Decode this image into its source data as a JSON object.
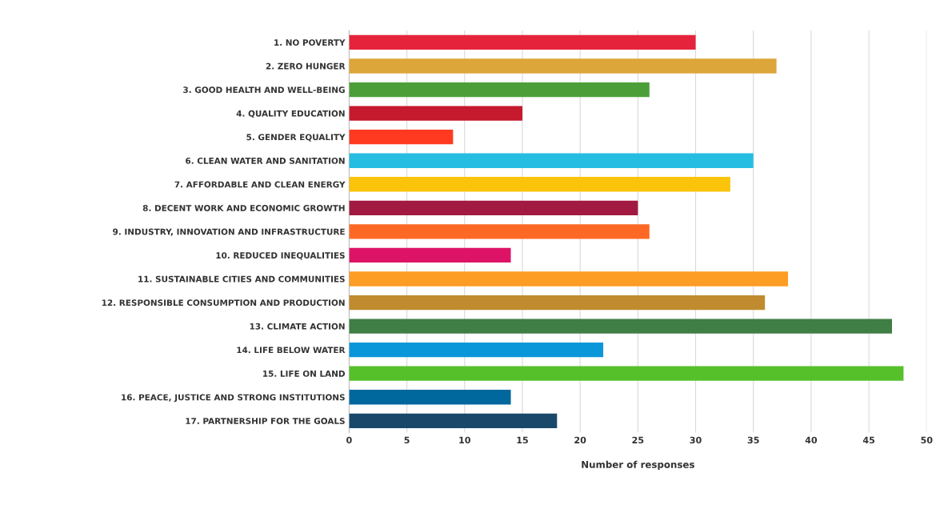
{
  "chart_data": {
    "type": "bar",
    "orientation": "horizontal",
    "xlabel": "Number of responses",
    "categories": [
      "1. NO POVERTY",
      "2. ZERO HUNGER",
      "3. GOOD HEALTH AND WELL-BEING",
      "4. QUALITY EDUCATION",
      "5. GENDER EQUALITY",
      "6. CLEAN WATER AND SANITATION",
      "7. AFFORDABLE AND CLEAN ENERGY",
      "8. DECENT WORK AND ECONOMIC GROWTH",
      "9. INDUSTRY, INNOVATION AND INFRASTRUCTURE",
      "10. REDUCED INEQUALITIES",
      "11. SUSTAINABLE CITIES AND COMMUNITIES",
      "12. RESPONSIBLE CONSUMPTION AND PRODUCTION",
      "13. CLIMATE ACTION",
      "14. LIFE BELOW WATER",
      "15. LIFE ON LAND",
      "16. PEACE, JUSTICE AND STRONG INSTITUTIONS",
      "17. PARTNERSHIP FOR THE GOALS"
    ],
    "values": [
      30,
      37,
      26,
      15,
      9,
      35,
      33,
      25,
      26,
      14,
      38,
      36,
      47,
      22,
      48,
      14,
      18
    ],
    "colors": [
      "#e5243b",
      "#dda63a",
      "#4c9f38",
      "#c5192d",
      "#ff3a21",
      "#26bde2",
      "#fcc30b",
      "#a21942",
      "#fd6925",
      "#dd1367",
      "#fd9d24",
      "#bf8b2e",
      "#3f7e44",
      "#0a97d9",
      "#56c02b",
      "#00689d",
      "#19486a"
    ],
    "xlim": [
      0,
      50
    ],
    "xticks": [
      0,
      5,
      10,
      15,
      20,
      25,
      30,
      35,
      40,
      45,
      50
    ],
    "grid": "x"
  }
}
